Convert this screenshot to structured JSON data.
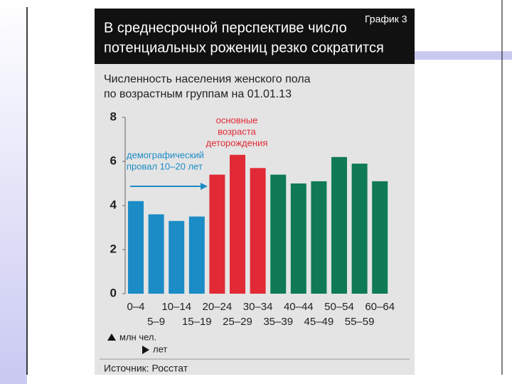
{
  "chart_data": {
    "type": "bar",
    "label": "График 3",
    "title": [
      "В среднесрочной перспективе число",
      "потенциальных рожениц резко сократится"
    ],
    "subtitle": [
      "Численность населения женского пола",
      "по возрастным группам на 01.01.13"
    ],
    "categories": [
      "0–4",
      "5–9",
      "10–14",
      "15–19",
      "20–24",
      "25–29",
      "30–34",
      "35–39",
      "40–44",
      "45–49",
      "50–54",
      "55–59",
      "60–64"
    ],
    "values": [
      4.2,
      3.6,
      3.3,
      3.5,
      5.4,
      6.3,
      5.7,
      5.4,
      5.0,
      5.1,
      6.2,
      5.9,
      5.1
    ],
    "colors": [
      "#1b8cc6",
      "#1b8cc6",
      "#1b8cc6",
      "#1b8cc6",
      "#e12a36",
      "#e12a36",
      "#e12a36",
      "#0f7a55",
      "#0f7a55",
      "#0f7a55",
      "#0f7a55",
      "#0f7a55",
      "#0f7a55"
    ],
    "ylim": [
      0,
      8
    ],
    "yticks": [
      0,
      2,
      4,
      6,
      8
    ],
    "y_unit": "млн чел.",
    "x_unit": "лет",
    "annotations": [
      {
        "lines": [
          "основные",
          "возраста",
          "деторождения"
        ],
        "color": "#e12a36"
      },
      {
        "lines": [
          "демографический",
          "провал 10–20 лет"
        ],
        "color": "#1b8cc6"
      }
    ],
    "source": "Источник: Росстат"
  }
}
